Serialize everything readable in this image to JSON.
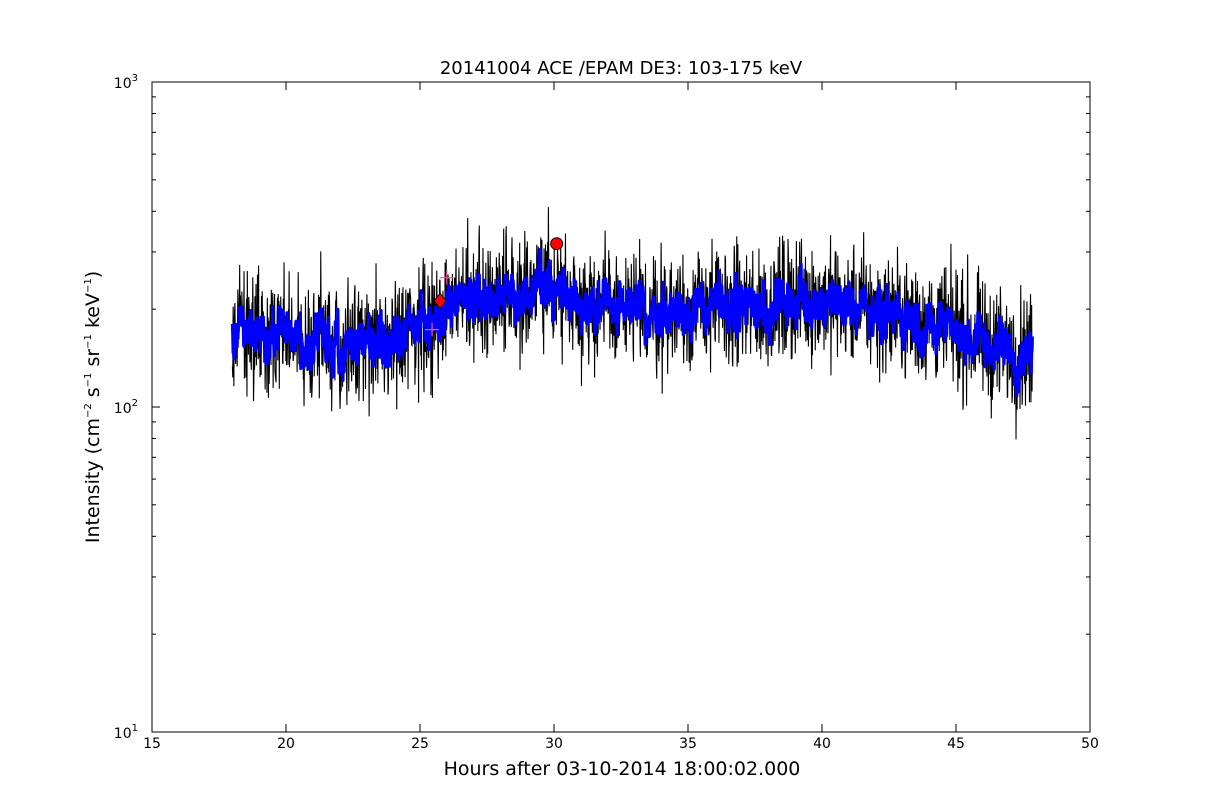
{
  "chart_data": {
    "type": "line",
    "title": "20141004 ACE /EPAM DE3: 103-175 keV",
    "xlabel": "Hours after 03-10-2014 18:00:02.000",
    "ylabel": {
      "prefix": "Intensity (cm",
      "sup1": "−2",
      "part2": " s",
      "sup2": "−1",
      "part3": " sr",
      "sup3": "−1",
      "part4": " keV",
      "sup4": "−1",
      "suffix": ")"
    },
    "xlim": [
      15,
      50
    ],
    "ylim": [
      10,
      1000
    ],
    "yscale": "log",
    "x_ticks": [
      15,
      20,
      25,
      30,
      35,
      40,
      45,
      50
    ],
    "x_tick_labels": [
      "15",
      "20",
      "25",
      "30",
      "35",
      "40",
      "45",
      "50"
    ],
    "y_ticks": [
      {
        "value": 10,
        "base": "10",
        "exp": "1"
      },
      {
        "value": 100,
        "base": "10",
        "exp": "2"
      },
      {
        "value": 1000,
        "base": "10",
        "exp": "3"
      }
    ],
    "grid": false,
    "x_range_data": [
      18.0,
      47.85
    ],
    "series": [
      {
        "role": "raw",
        "color": "#000000",
        "approx_profile": [
          [
            18.0,
            175
          ],
          [
            19.0,
            170
          ],
          [
            20.0,
            165
          ],
          [
            21.0,
            158
          ],
          [
            22.0,
            160
          ],
          [
            23.0,
            158
          ],
          [
            24.0,
            160
          ],
          [
            25.0,
            168
          ],
          [
            25.5,
            180
          ],
          [
            26.0,
            205
          ],
          [
            27.0,
            215
          ],
          [
            28.0,
            225
          ],
          [
            29.0,
            228
          ],
          [
            30.0,
            232
          ],
          [
            31.0,
            215
          ],
          [
            32.0,
            200
          ],
          [
            33.0,
            195
          ],
          [
            34.0,
            195
          ],
          [
            35.0,
            200
          ],
          [
            36.0,
            205
          ],
          [
            37.0,
            200
          ],
          [
            38.0,
            205
          ],
          [
            39.0,
            215
          ],
          [
            40.0,
            212
          ],
          [
            41.0,
            205
          ],
          [
            42.0,
            200
          ],
          [
            43.0,
            190
          ],
          [
            44.0,
            180
          ],
          [
            45.0,
            172
          ],
          [
            46.0,
            158
          ],
          [
            47.0,
            150
          ],
          [
            47.85,
            148
          ]
        ],
        "noise_amplitude_decades": 0.12
      },
      {
        "role": "smoothed",
        "color": "#0000ff",
        "noise_amplitude_decades": 0.05
      }
    ],
    "markers": [
      {
        "kind": "circle",
        "x": 30.1,
        "y": 318,
        "color": "#ff0000"
      },
      {
        "kind": "diamond",
        "x": 25.75,
        "y": 212,
        "color": "#ff0000"
      },
      {
        "kind": "plus",
        "x": 25.45,
        "y": 173,
        "color": "#ff4da6"
      },
      {
        "kind": "plus",
        "x": 26.0,
        "y": 250,
        "color": "#ff4da6"
      }
    ]
  }
}
